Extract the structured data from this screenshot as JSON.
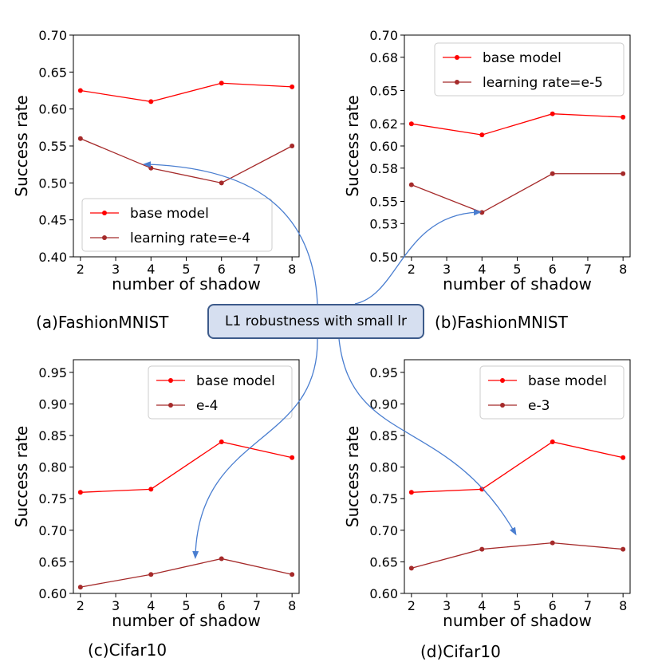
{
  "callout": {
    "text": "L1 robustness with small lr"
  },
  "colors": {
    "base": "#ff0000",
    "variant": "#a52a2a",
    "arrow": "#4a7ed0"
  },
  "chart_data": [
    {
      "type": "line",
      "caption": "(a)FashionMNIST",
      "xlabel": "number of shadow",
      "ylabel": "Success rate",
      "x": [
        2,
        4,
        6,
        8
      ],
      "xticks": [
        "2",
        "3",
        "4",
        "5",
        "6",
        "7",
        "8"
      ],
      "xlim": [
        1.8,
        8.2
      ],
      "ylim": [
        0.4,
        0.7
      ],
      "yticks": [
        "0.40",
        "0.45",
        "0.50",
        "0.55",
        "0.60",
        "0.65",
        "0.70"
      ],
      "legend_position": "lower-left",
      "series": [
        {
          "name": "base model",
          "values": [
            0.625,
            0.61,
            0.635,
            0.63
          ]
        },
        {
          "name": "learning rate=e-4",
          "values": [
            0.56,
            0.52,
            0.5,
            0.55
          ]
        }
      ]
    },
    {
      "type": "line",
      "caption": "(b)FashionMNIST",
      "xlabel": "number of shadow",
      "ylabel": "Success rate",
      "x": [
        2,
        4,
        6,
        8
      ],
      "xticks": [
        "2",
        "3",
        "4",
        "5",
        "6",
        "7",
        "8"
      ],
      "xlim": [
        1.8,
        8.2
      ],
      "ylim": [
        0.5,
        0.7
      ],
      "yticks": [
        "0.50",
        "0.53",
        "0.55",
        "0.58",
        "0.60",
        "0.62",
        "0.65",
        "0.68",
        "0.70"
      ],
      "legend_position": "top-right",
      "series": [
        {
          "name": "base model",
          "values": [
            0.62,
            0.61,
            0.629,
            0.626
          ]
        },
        {
          "name": "learning rate=e-5",
          "values": [
            0.565,
            0.54,
            0.575,
            0.575
          ]
        }
      ]
    },
    {
      "type": "line",
      "caption": "(c)Cifar10",
      "xlabel": "number of shadow",
      "ylabel": "Success rate",
      "x": [
        2,
        4,
        6,
        8
      ],
      "xticks": [
        "2",
        "3",
        "4",
        "5",
        "6",
        "7",
        "8"
      ],
      "xlim": [
        1.8,
        8.2
      ],
      "ylim": [
        0.6,
        0.97
      ],
      "yticks": [
        "0.60",
        "0.65",
        "0.70",
        "0.75",
        "0.80",
        "0.85",
        "0.90",
        "0.95"
      ],
      "legend_position": "top-right",
      "series": [
        {
          "name": "base model",
          "values": [
            0.76,
            0.765,
            0.84,
            0.815
          ]
        },
        {
          "name": "e-4",
          "values": [
            0.61,
            0.63,
            0.655,
            0.63
          ]
        }
      ]
    },
    {
      "type": "line",
      "caption": "(d)Cifar10",
      "xlabel": "number of shadow",
      "ylabel": "Success rate",
      "x": [
        2,
        4,
        6,
        8
      ],
      "xticks": [
        "2",
        "3",
        "4",
        "5",
        "6",
        "7",
        "8"
      ],
      "xlim": [
        1.8,
        8.2
      ],
      "ylim": [
        0.6,
        0.97
      ],
      "yticks": [
        "0.60",
        "0.65",
        "0.70",
        "0.75",
        "0.80",
        "0.85",
        "0.90",
        "0.95"
      ],
      "legend_position": "top-right",
      "series": [
        {
          "name": "base model",
          "values": [
            0.76,
            0.765,
            0.84,
            0.815
          ]
        },
        {
          "name": "e-3",
          "values": [
            0.64,
            0.67,
            0.68,
            0.67
          ]
        }
      ]
    }
  ]
}
